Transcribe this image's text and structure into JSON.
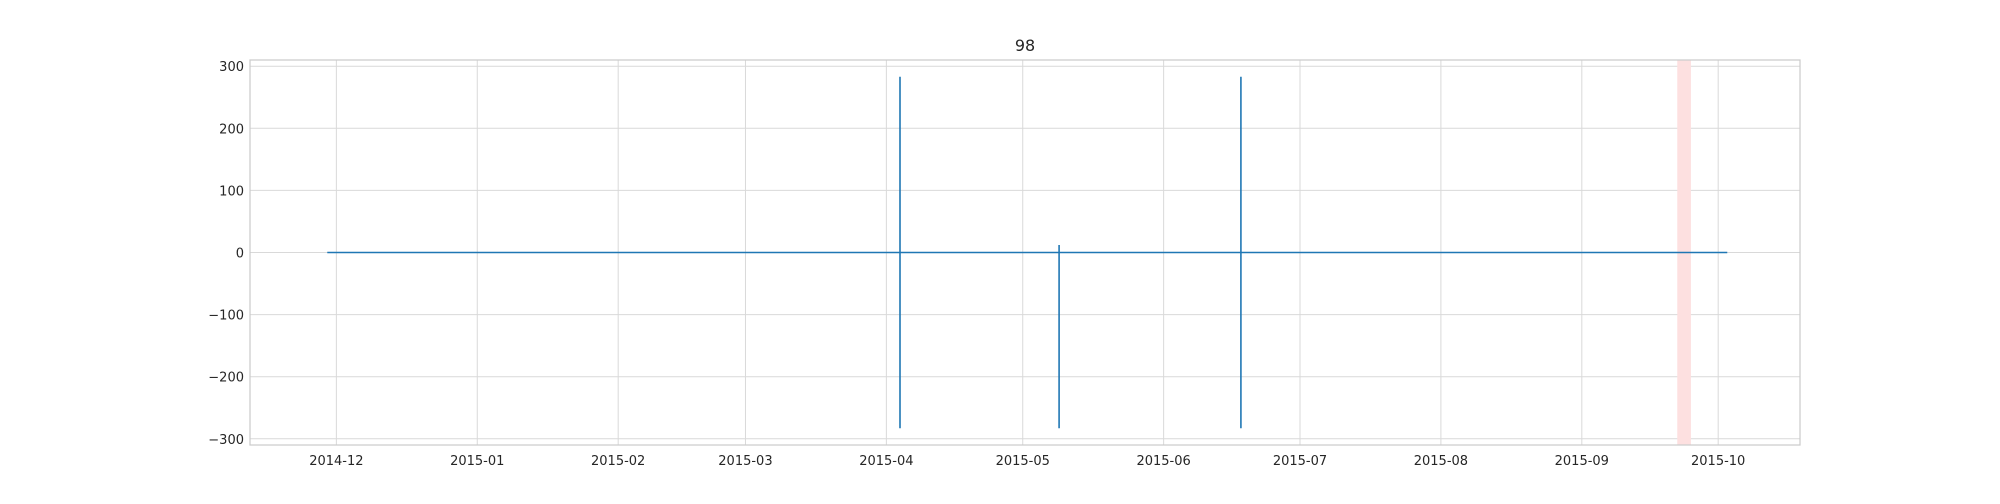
{
  "chart_data": {
    "type": "line",
    "title": "98",
    "xlabel": "",
    "ylabel": "",
    "x_type": "date",
    "xlim": [
      "2014-11-12",
      "2015-10-19"
    ],
    "ylim": [
      -310,
      310
    ],
    "x_ticks": [
      {
        "value": "2014-12-01",
        "label": "2014-12"
      },
      {
        "value": "2015-01-01",
        "label": "2015-01"
      },
      {
        "value": "2015-02-01",
        "label": "2015-02"
      },
      {
        "value": "2015-03-01",
        "label": "2015-03"
      },
      {
        "value": "2015-04-01",
        "label": "2015-04"
      },
      {
        "value": "2015-05-01",
        "label": "2015-05"
      },
      {
        "value": "2015-06-01",
        "label": "2015-06"
      },
      {
        "value": "2015-07-01",
        "label": "2015-07"
      },
      {
        "value": "2015-08-01",
        "label": "2015-08"
      },
      {
        "value": "2015-09-01",
        "label": "2015-09"
      },
      {
        "value": "2015-10-01",
        "label": "2015-10"
      }
    ],
    "y_ticks": [
      {
        "value": 300,
        "label": "300"
      },
      {
        "value": 200,
        "label": "200"
      },
      {
        "value": 100,
        "label": "100"
      },
      {
        "value": 0,
        "label": "0"
      },
      {
        "value": -100,
        "label": "−100"
      },
      {
        "value": -200,
        "label": "−200"
      },
      {
        "value": -300,
        "label": "−300"
      }
    ],
    "grid": true,
    "series": [
      {
        "color": "#1f77b4",
        "points": [
          {
            "x": "2014-11-29",
            "y": 0
          },
          {
            "x": "2015-04-04",
            "y": 0
          },
          {
            "x": "2015-04-04",
            "y": 283
          },
          {
            "x": "2015-04-04",
            "y": -283
          },
          {
            "x": "2015-04-04",
            "y": 0
          },
          {
            "x": "2015-05-09",
            "y": 0
          },
          {
            "x": "2015-05-09",
            "y": 12
          },
          {
            "x": "2015-05-09",
            "y": -283
          },
          {
            "x": "2015-05-09",
            "y": 0
          },
          {
            "x": "2015-06-18",
            "y": 0
          },
          {
            "x": "2015-06-18",
            "y": 283
          },
          {
            "x": "2015-06-18",
            "y": -283
          },
          {
            "x": "2015-06-18",
            "y": 0
          },
          {
            "x": "2015-10-03",
            "y": 0
          }
        ]
      }
    ],
    "shaded_regions": [
      {
        "x_start": "2015-09-22",
        "x_end": "2015-09-25",
        "color": "#fde0e0"
      }
    ]
  }
}
